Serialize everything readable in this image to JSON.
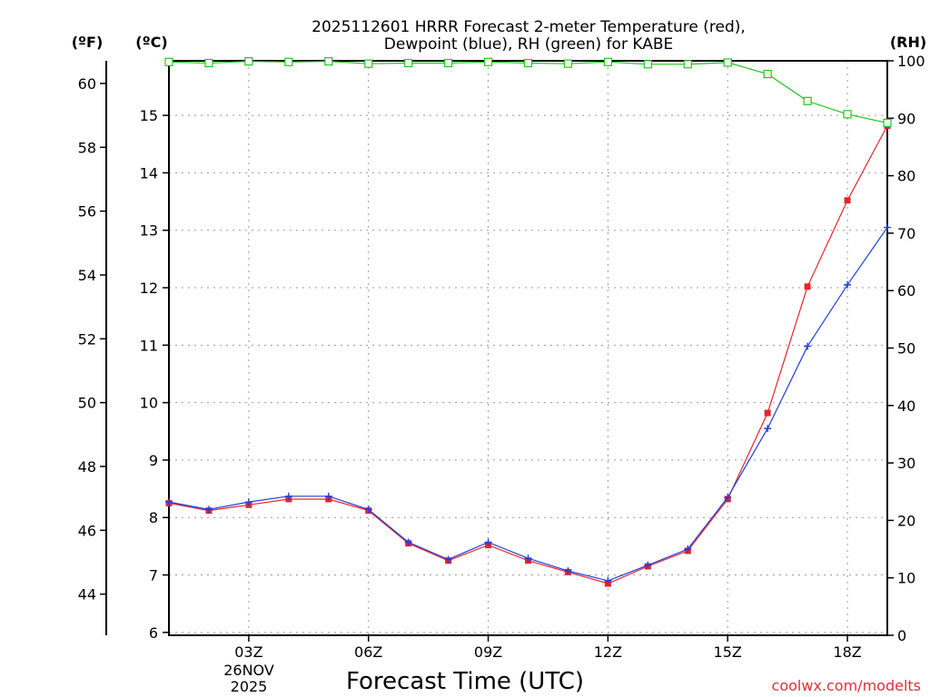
{
  "chart_data": {
    "type": "line",
    "title_line1": "2025112601 HRRR Forecast 2-meter Temperature (red),",
    "title_line2": "Dewpoint (blue), RH (green) for KABE",
    "xlabel": "Forecast Time (UTC)",
    "credit": "coolwx.com/modelts",
    "units": {
      "fahrenheit": "(ºF)",
      "celsius": "(ºC)",
      "rh": "(RH)"
    },
    "date_label": {
      "day": "26NOV",
      "year": "2025"
    },
    "x_hours": [
      1,
      2,
      3,
      4,
      5,
      6,
      7,
      8,
      9,
      10,
      11,
      12,
      13,
      14,
      15,
      16,
      17,
      18,
      19
    ],
    "xlim": [
      1,
      19
    ],
    "x_ticks": [
      {
        "hour": 3,
        "label": "03Z"
      },
      {
        "hour": 6,
        "label": "06Z"
      },
      {
        "hour": 9,
        "label": "09Z"
      },
      {
        "hour": 12,
        "label": "12Z"
      },
      {
        "hour": 15,
        "label": "15Z"
      },
      {
        "hour": 18,
        "label": "18Z"
      }
    ],
    "celsius_ticks": [
      6,
      7,
      8,
      9,
      10,
      11,
      12,
      13,
      14,
      15
    ],
    "celsius_ylim": [
      5.95,
      15.95
    ],
    "fahrenheit_ticks": [
      44,
      46,
      48,
      50,
      52,
      54,
      56,
      58,
      60
    ],
    "rh_ticks": [
      0,
      10,
      20,
      30,
      40,
      50,
      60,
      70,
      80,
      90,
      100
    ],
    "rh_ylim": [
      0,
      100
    ],
    "series": [
      {
        "name": "Temperature",
        "unit": "C",
        "color": "#e8242c",
        "marker": "filled-square",
        "values": [
          8.25,
          8.12,
          8.22,
          8.32,
          8.32,
          8.12,
          7.55,
          7.25,
          7.52,
          7.25,
          7.05,
          6.85,
          7.15,
          7.42,
          8.32,
          9.82,
          12.02,
          13.52,
          14.82
        ]
      },
      {
        "name": "Dewpoint",
        "unit": "C",
        "color": "#1f3fdc",
        "marker": "plus",
        "values": [
          8.27,
          8.14,
          8.27,
          8.37,
          8.37,
          8.14,
          7.57,
          7.27,
          7.57,
          7.29,
          7.07,
          6.9,
          7.17,
          7.45,
          8.35,
          9.55,
          10.98,
          12.05,
          13.05
        ]
      },
      {
        "name": "RH",
        "unit": "%",
        "color": "#22c422",
        "marker": "open-square",
        "values": [
          99.8,
          99.6,
          99.9,
          99.8,
          99.9,
          99.5,
          99.6,
          99.6,
          99.8,
          99.6,
          99.5,
          99.8,
          99.4,
          99.4,
          99.7,
          97.7,
          93.0,
          90.7,
          89.2
        ]
      }
    ]
  }
}
